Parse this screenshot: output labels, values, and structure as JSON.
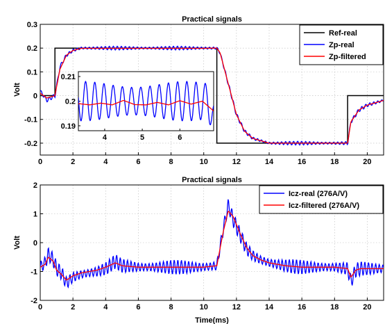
{
  "chart_data": [
    {
      "type": "line",
      "title": "Practical signals",
      "xlabel": "",
      "ylabel": "Volt",
      "xlim": [
        0,
        21
      ],
      "ylim": [
        -0.25,
        0.3
      ],
      "xticks": [
        0,
        2,
        4,
        6,
        8,
        10,
        12,
        14,
        16,
        18,
        20
      ],
      "yticks": [
        -0.2,
        -0.1,
        0,
        0.1,
        0.2,
        0.3
      ],
      "ytick_labels": [
        "-0.2",
        "-0.1",
        "0",
        "0.1",
        "0.2",
        "0.3"
      ],
      "grid": true,
      "legend_position": "top-right",
      "series": [
        {
          "name": "Ref-real",
          "color": "#000000",
          "x": [
            0,
            0.9,
            0.9,
            10.8,
            10.8,
            18.8,
            18.8,
            21
          ],
          "y": [
            0,
            0,
            0.2,
            0.2,
            -0.2,
            -0.2,
            0,
            0
          ]
        },
        {
          "name": "Zp-real",
          "color": "#0000ff",
          "x": [
            0,
            0.4,
            0.9,
            1.2,
            1.6,
            2.0,
            2.5,
            3.0,
            3.5,
            4,
            5,
            6,
            7,
            8,
            9,
            10,
            10.8,
            11.0,
            11.5,
            12.0,
            12.5,
            13.0,
            13.5,
            14,
            15,
            16,
            17,
            18,
            18.8,
            19.0,
            19.5,
            20.0,
            20.5,
            21
          ],
          "y": [
            0.02,
            -0.02,
            0.0,
            0.12,
            0.17,
            0.19,
            0.2,
            0.2,
            0.2,
            0.2,
            0.2,
            0.2,
            0.2,
            0.2,
            0.2,
            0.2,
            0.2,
            0.18,
            0.05,
            -0.08,
            -0.15,
            -0.18,
            -0.19,
            -0.2,
            -0.2,
            -0.2,
            -0.2,
            -0.2,
            -0.2,
            -0.11,
            -0.06,
            -0.04,
            -0.03,
            -0.02
          ],
          "oscillation_amplitude": 0.008
        },
        {
          "name": "Zp-filtered",
          "color": "#ff0000",
          "x": [
            0,
            0.4,
            0.9,
            1.2,
            1.6,
            2.0,
            2.5,
            3.0,
            3.5,
            4,
            5,
            6,
            7,
            8,
            9,
            10,
            10.8,
            11.0,
            11.5,
            12.0,
            12.5,
            13.0,
            13.5,
            14,
            15,
            16,
            17,
            18,
            18.8,
            19.0,
            19.5,
            20.0,
            20.5,
            21
          ],
          "y": [
            0.01,
            -0.01,
            0.0,
            0.11,
            0.17,
            0.19,
            0.199,
            0.199,
            0.199,
            0.199,
            0.199,
            0.199,
            0.199,
            0.199,
            0.199,
            0.199,
            0.2,
            0.18,
            0.05,
            -0.08,
            -0.15,
            -0.18,
            -0.19,
            -0.2,
            -0.2,
            -0.2,
            -0.2,
            -0.2,
            -0.2,
            -0.11,
            -0.06,
            -0.04,
            -0.03,
            -0.02
          ]
        }
      ],
      "inset": {
        "xlim": [
          3.3,
          6.9
        ],
        "ylim": [
          0.188,
          0.212
        ],
        "xticks": [
          4,
          5,
          6
        ],
        "yticks": [
          0.19,
          0.2,
          0.21
        ],
        "ytick_labels": [
          "0.19",
          "0.2",
          "0.21"
        ],
        "series": [
          {
            "name": "Zp-real",
            "color": "#0000ff",
            "mean": 0.2,
            "amplitude": 0.008,
            "period": 0.245
          },
          {
            "name": "Zp-filtered",
            "color": "#ff0000",
            "x": [
              3.3,
              3.6,
              3.9,
              4.2,
              4.5,
              4.8,
              5.1,
              5.4,
              5.7,
              6.0,
              6.3,
              6.6,
              6.9
            ],
            "y": [
              0.199,
              0.1985,
              0.1992,
              0.1985,
              0.2003,
              0.1986,
              0.1985,
              0.1995,
              0.1985,
              0.2002,
              0.1988,
              0.2,
              0.196
            ]
          }
        ]
      }
    },
    {
      "type": "line",
      "title": "Practical signals",
      "xlabel": "Time(ms)",
      "ylabel": "Volt",
      "xlim": [
        0,
        21
      ],
      "ylim": [
        -2,
        2
      ],
      "xticks": [
        0,
        2,
        4,
        6,
        8,
        10,
        12,
        14,
        16,
        18,
        20
      ],
      "yticks": [
        -2,
        -1,
        0,
        1,
        2
      ],
      "ytick_labels": [
        "-2",
        "-1",
        "0",
        "1",
        "2"
      ],
      "grid": true,
      "legend_position": "top-right",
      "series": [
        {
          "name": "Icz-real (276A/V)",
          "color": "#0000ff",
          "x": [
            0,
            0.3,
            0.5,
            0.8,
            1.0,
            1.3,
            1.6,
            2.0,
            2.5,
            3.0,
            3.5,
            4.0,
            4.6,
            5.0,
            6.0,
            7.0,
            8.0,
            9.0,
            10.0,
            10.8,
            11.2,
            11.5,
            11.8,
            12.2,
            12.6,
            13.0,
            13.5,
            14,
            15,
            16,
            17,
            18,
            18.8,
            19.0,
            19.3,
            19.6,
            20,
            21
          ],
          "y": [
            -0.85,
            -0.7,
            -0.4,
            -0.6,
            -0.9,
            -1.05,
            -1.4,
            -1.2,
            -1.1,
            -1.05,
            -1.0,
            -0.9,
            -0.65,
            -0.8,
            -0.85,
            -0.85,
            -0.85,
            -0.85,
            -0.85,
            -0.8,
            0.5,
            1.3,
            0.8,
            0.3,
            -0.2,
            -0.45,
            -0.6,
            -0.7,
            -0.8,
            -0.85,
            -0.85,
            -0.85,
            -0.9,
            -1.35,
            -0.95,
            -0.9,
            -0.9,
            -0.9
          ],
          "oscillation_amplitude": 0.25
        },
        {
          "name": "Icz-filtered (276A/V)",
          "color": "#ff0000",
          "x": [
            0,
            0.3,
            0.5,
            0.8,
            1.0,
            1.3,
            1.6,
            2.0,
            2.5,
            3.0,
            3.5,
            4.0,
            4.6,
            5.0,
            6.0,
            7.0,
            8.0,
            9.0,
            10.0,
            10.8,
            11.2,
            11.5,
            11.8,
            12.2,
            12.6,
            13.0,
            13.5,
            14,
            15,
            16,
            17,
            18,
            18.8,
            19.0,
            19.3,
            19.6,
            20,
            21
          ],
          "y": [
            -0.85,
            -0.75,
            -0.5,
            -0.65,
            -0.95,
            -1.1,
            -1.3,
            -1.15,
            -1.05,
            -1.0,
            -0.95,
            -0.85,
            -0.7,
            -0.8,
            -0.85,
            -0.85,
            -0.85,
            -0.85,
            -0.85,
            -0.8,
            0.4,
            1.1,
            0.9,
            0.35,
            -0.15,
            -0.45,
            -0.6,
            -0.7,
            -0.8,
            -0.85,
            -0.85,
            -0.85,
            -0.9,
            -1.2,
            -0.95,
            -0.9,
            -0.9,
            -0.9
          ]
        }
      ]
    }
  ]
}
